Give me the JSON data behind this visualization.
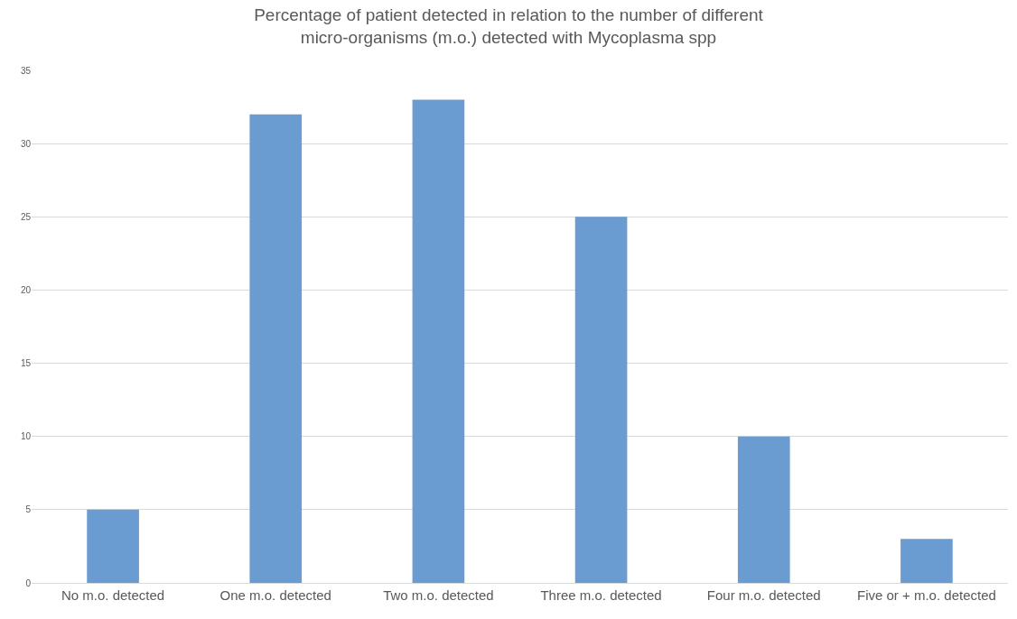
{
  "chart_data": {
    "type": "bar",
    "title": "Percentage of patient detected in relation to the number of different\nmicro-organisms (m.o.) detected with Mycoplasma spp",
    "categories": [
      "No m.o. detected",
      "One m.o. detected",
      "Two m.o. detected",
      "Three m.o. detected",
      "Four m.o. detected",
      "Five or + m.o. detected"
    ],
    "values": [
      5,
      32,
      33,
      25,
      10,
      3
    ],
    "color": "#6a9bd1",
    "ylim": [
      0,
      35
    ],
    "yticks": [
      0,
      5,
      10,
      15,
      20,
      25,
      30,
      35
    ],
    "grid": "y"
  }
}
